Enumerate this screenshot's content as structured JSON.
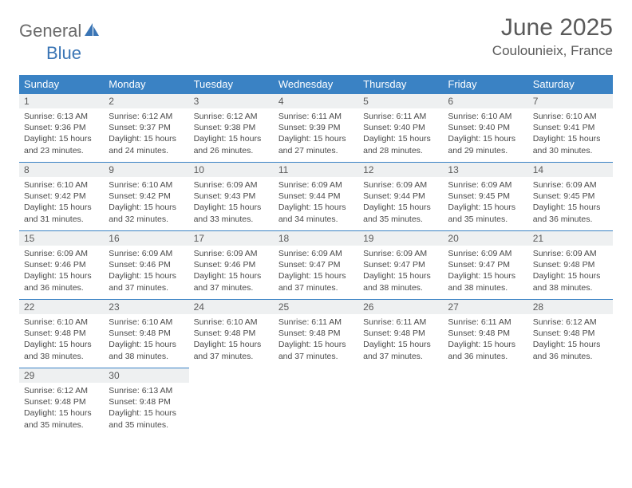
{
  "brand": {
    "word1": "General",
    "word2": "Blue"
  },
  "title": "June 2025",
  "location": "Coulounieix, France",
  "colors": {
    "header_bg": "#3a82c4",
    "header_text": "#ffffff",
    "daynum_bg": "#eef0f1",
    "border": "#3a82c4",
    "text": "#4a4a4a",
    "brand_gray": "#6b6b6b",
    "brand_blue": "#3a75b5"
  },
  "weekdays": [
    "Sunday",
    "Monday",
    "Tuesday",
    "Wednesday",
    "Thursday",
    "Friday",
    "Saturday"
  ],
  "weeks": [
    [
      {
        "n": "1",
        "sr": "Sunrise: 6:13 AM",
        "ss": "Sunset: 9:36 PM",
        "d1": "Daylight: 15 hours",
        "d2": "and 23 minutes."
      },
      {
        "n": "2",
        "sr": "Sunrise: 6:12 AM",
        "ss": "Sunset: 9:37 PM",
        "d1": "Daylight: 15 hours",
        "d2": "and 24 minutes."
      },
      {
        "n": "3",
        "sr": "Sunrise: 6:12 AM",
        "ss": "Sunset: 9:38 PM",
        "d1": "Daylight: 15 hours",
        "d2": "and 26 minutes."
      },
      {
        "n": "4",
        "sr": "Sunrise: 6:11 AM",
        "ss": "Sunset: 9:39 PM",
        "d1": "Daylight: 15 hours",
        "d2": "and 27 minutes."
      },
      {
        "n": "5",
        "sr": "Sunrise: 6:11 AM",
        "ss": "Sunset: 9:40 PM",
        "d1": "Daylight: 15 hours",
        "d2": "and 28 minutes."
      },
      {
        "n": "6",
        "sr": "Sunrise: 6:10 AM",
        "ss": "Sunset: 9:40 PM",
        "d1": "Daylight: 15 hours",
        "d2": "and 29 minutes."
      },
      {
        "n": "7",
        "sr": "Sunrise: 6:10 AM",
        "ss": "Sunset: 9:41 PM",
        "d1": "Daylight: 15 hours",
        "d2": "and 30 minutes."
      }
    ],
    [
      {
        "n": "8",
        "sr": "Sunrise: 6:10 AM",
        "ss": "Sunset: 9:42 PM",
        "d1": "Daylight: 15 hours",
        "d2": "and 31 minutes."
      },
      {
        "n": "9",
        "sr": "Sunrise: 6:10 AM",
        "ss": "Sunset: 9:42 PM",
        "d1": "Daylight: 15 hours",
        "d2": "and 32 minutes."
      },
      {
        "n": "10",
        "sr": "Sunrise: 6:09 AM",
        "ss": "Sunset: 9:43 PM",
        "d1": "Daylight: 15 hours",
        "d2": "and 33 minutes."
      },
      {
        "n": "11",
        "sr": "Sunrise: 6:09 AM",
        "ss": "Sunset: 9:44 PM",
        "d1": "Daylight: 15 hours",
        "d2": "and 34 minutes."
      },
      {
        "n": "12",
        "sr": "Sunrise: 6:09 AM",
        "ss": "Sunset: 9:44 PM",
        "d1": "Daylight: 15 hours",
        "d2": "and 35 minutes."
      },
      {
        "n": "13",
        "sr": "Sunrise: 6:09 AM",
        "ss": "Sunset: 9:45 PM",
        "d1": "Daylight: 15 hours",
        "d2": "and 35 minutes."
      },
      {
        "n": "14",
        "sr": "Sunrise: 6:09 AM",
        "ss": "Sunset: 9:45 PM",
        "d1": "Daylight: 15 hours",
        "d2": "and 36 minutes."
      }
    ],
    [
      {
        "n": "15",
        "sr": "Sunrise: 6:09 AM",
        "ss": "Sunset: 9:46 PM",
        "d1": "Daylight: 15 hours",
        "d2": "and 36 minutes."
      },
      {
        "n": "16",
        "sr": "Sunrise: 6:09 AM",
        "ss": "Sunset: 9:46 PM",
        "d1": "Daylight: 15 hours",
        "d2": "and 37 minutes."
      },
      {
        "n": "17",
        "sr": "Sunrise: 6:09 AM",
        "ss": "Sunset: 9:46 PM",
        "d1": "Daylight: 15 hours",
        "d2": "and 37 minutes."
      },
      {
        "n": "18",
        "sr": "Sunrise: 6:09 AM",
        "ss": "Sunset: 9:47 PM",
        "d1": "Daylight: 15 hours",
        "d2": "and 37 minutes."
      },
      {
        "n": "19",
        "sr": "Sunrise: 6:09 AM",
        "ss": "Sunset: 9:47 PM",
        "d1": "Daylight: 15 hours",
        "d2": "and 38 minutes."
      },
      {
        "n": "20",
        "sr": "Sunrise: 6:09 AM",
        "ss": "Sunset: 9:47 PM",
        "d1": "Daylight: 15 hours",
        "d2": "and 38 minutes."
      },
      {
        "n": "21",
        "sr": "Sunrise: 6:09 AM",
        "ss": "Sunset: 9:48 PM",
        "d1": "Daylight: 15 hours",
        "d2": "and 38 minutes."
      }
    ],
    [
      {
        "n": "22",
        "sr": "Sunrise: 6:10 AM",
        "ss": "Sunset: 9:48 PM",
        "d1": "Daylight: 15 hours",
        "d2": "and 38 minutes."
      },
      {
        "n": "23",
        "sr": "Sunrise: 6:10 AM",
        "ss": "Sunset: 9:48 PM",
        "d1": "Daylight: 15 hours",
        "d2": "and 38 minutes."
      },
      {
        "n": "24",
        "sr": "Sunrise: 6:10 AM",
        "ss": "Sunset: 9:48 PM",
        "d1": "Daylight: 15 hours",
        "d2": "and 37 minutes."
      },
      {
        "n": "25",
        "sr": "Sunrise: 6:11 AM",
        "ss": "Sunset: 9:48 PM",
        "d1": "Daylight: 15 hours",
        "d2": "and 37 minutes."
      },
      {
        "n": "26",
        "sr": "Sunrise: 6:11 AM",
        "ss": "Sunset: 9:48 PM",
        "d1": "Daylight: 15 hours",
        "d2": "and 37 minutes."
      },
      {
        "n": "27",
        "sr": "Sunrise: 6:11 AM",
        "ss": "Sunset: 9:48 PM",
        "d1": "Daylight: 15 hours",
        "d2": "and 36 minutes."
      },
      {
        "n": "28",
        "sr": "Sunrise: 6:12 AM",
        "ss": "Sunset: 9:48 PM",
        "d1": "Daylight: 15 hours",
        "d2": "and 36 minutes."
      }
    ],
    [
      {
        "n": "29",
        "sr": "Sunrise: 6:12 AM",
        "ss": "Sunset: 9:48 PM",
        "d1": "Daylight: 15 hours",
        "d2": "and 35 minutes."
      },
      {
        "n": "30",
        "sr": "Sunrise: 6:13 AM",
        "ss": "Sunset: 9:48 PM",
        "d1": "Daylight: 15 hours",
        "d2": "and 35 minutes."
      },
      null,
      null,
      null,
      null,
      null
    ]
  ]
}
